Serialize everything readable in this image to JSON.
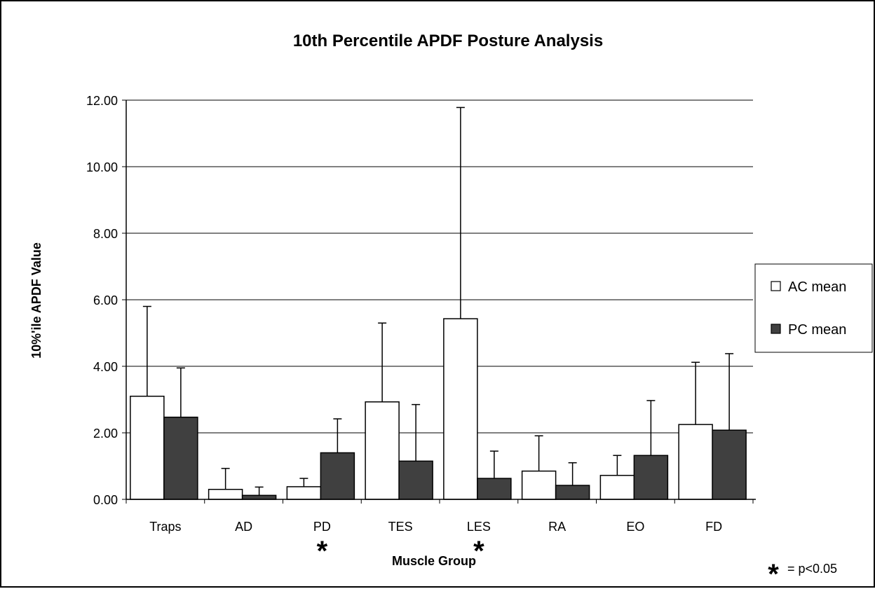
{
  "chart_data": {
    "type": "bar",
    "title": "10th Percentile APDF Posture Analysis",
    "xlabel": "Muscle Group",
    "ylabel": "10%'ile APDF Value",
    "categories": [
      "Traps",
      "AD",
      "PD",
      "TES",
      "LES",
      "RA",
      "EO",
      "FD"
    ],
    "series": [
      {
        "name": "AC mean",
        "color": "#ffffff",
        "values": [
          3.1,
          0.3,
          0.38,
          2.93,
          5.43,
          0.85,
          0.72,
          2.25
        ],
        "error_plus": [
          2.7,
          0.63,
          0.25,
          2.37,
          6.35,
          1.06,
          0.6,
          1.87
        ]
      },
      {
        "name": "PC mean",
        "color": "#404040",
        "values": [
          2.47,
          0.12,
          1.4,
          1.15,
          0.63,
          0.42,
          1.32,
          2.08
        ],
        "error_plus": [
          1.48,
          0.25,
          1.02,
          1.7,
          0.82,
          0.68,
          1.65,
          2.3
        ]
      }
    ],
    "ylim": [
      0,
      12
    ],
    "yticks": [
      "0.00",
      "2.00",
      "4.00",
      "6.00",
      "8.00",
      "10.00",
      "12.00"
    ],
    "grid": true,
    "legend_position": "right",
    "significant_categories": [
      "PD",
      "LES"
    ],
    "significance_marker": "*",
    "significance_label": "= p<0.05"
  }
}
